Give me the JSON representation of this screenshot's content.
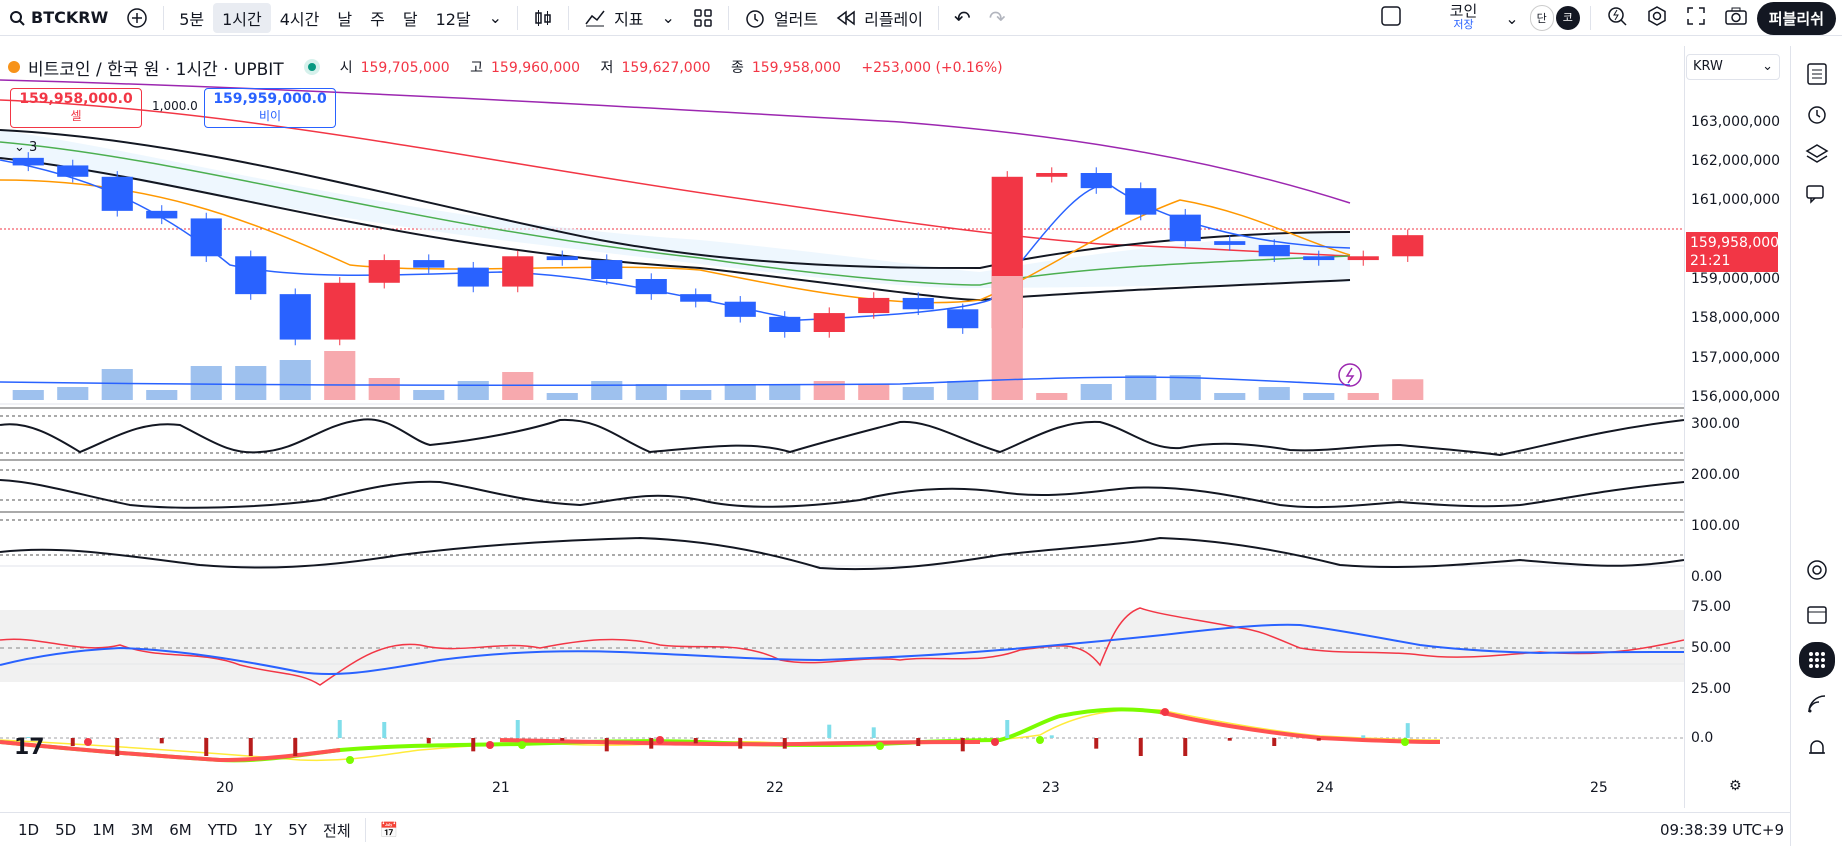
{
  "toolbar": {
    "symbol": "BTCKRW",
    "intervals": [
      "5분",
      "1시간",
      "4시간",
      "날",
      "주",
      "달",
      "12달"
    ],
    "selected_interval": "1시간",
    "indicators_label": "지표",
    "alert_label": "얼러트",
    "replay_label": "리플레이",
    "layout_name": "코인",
    "layout_status": "저장",
    "toggle_label": "단",
    "avatar_label": "코",
    "publish_label": "퍼블리쉬"
  },
  "legend": {
    "title": "비트코인 / 한국 원 · 1시간 · UPBIT",
    "open_label": "시",
    "open": "159,705,000",
    "high_label": "고",
    "high": "159,960,000",
    "low_label": "저",
    "low": "159,627,000",
    "close_label": "종",
    "close": "159,958,000",
    "change": "+253,000 (+0.16%)"
  },
  "trade": {
    "sell_price": "159,958,000.0",
    "sell_label": "셀",
    "qty": "1,000.0",
    "buy_price": "159,959,000.0",
    "buy_label": "비이",
    "collapse_count": "3"
  },
  "currency": "KRW",
  "price_axis": [
    "163,000,000",
    "162,000,000",
    "161,000,000",
    "159,000,000",
    "158,000,000",
    "157,000,000",
    "156,000,000"
  ],
  "current_price": {
    "price": "159,958,000",
    "countdown": "21:21"
  },
  "osc_axis": [
    "300.00",
    "200.00",
    "100.00",
    "0.00"
  ],
  "rsi_axis": [
    "75.00",
    "50.00",
    "25.00"
  ],
  "macd_axis": [
    "0.0"
  ],
  "time_axis": [
    "20",
    "21",
    "22",
    "23",
    "24",
    "25"
  ],
  "ranges": [
    "1D",
    "5D",
    "1M",
    "3M",
    "6M",
    "YTD",
    "1Y",
    "5Y",
    "전체"
  ],
  "clock": "09:38:39 UTC+9",
  "colors": {
    "up": "#f23645",
    "down": "#2962ff",
    "accent": "#2962ff"
  },
  "chart_data": {
    "type": "candlestick",
    "x": [
      "20",
      "21",
      "22",
      "23",
      "24"
    ],
    "ylim": [
      156000000,
      163000000
    ],
    "close_series": [
      161800000,
      161500000,
      160600000,
      160400000,
      159400000,
      158400000,
      157200000,
      158700000,
      159300000,
      159100000,
      158600000,
      159400000,
      159300000,
      158800000,
      158400000,
      158200000,
      157800000,
      157400000,
      157900000,
      158300000,
      158000000,
      157500000,
      161500000,
      161600000,
      161200000,
      160500000,
      159800000,
      159700000,
      159400000,
      159300000,
      159400000,
      159958000
    ],
    "overlays": [
      "ma-black",
      "ma-green",
      "ma-red",
      "ma-purple",
      "ma-orange",
      "ma-blue"
    ]
  }
}
